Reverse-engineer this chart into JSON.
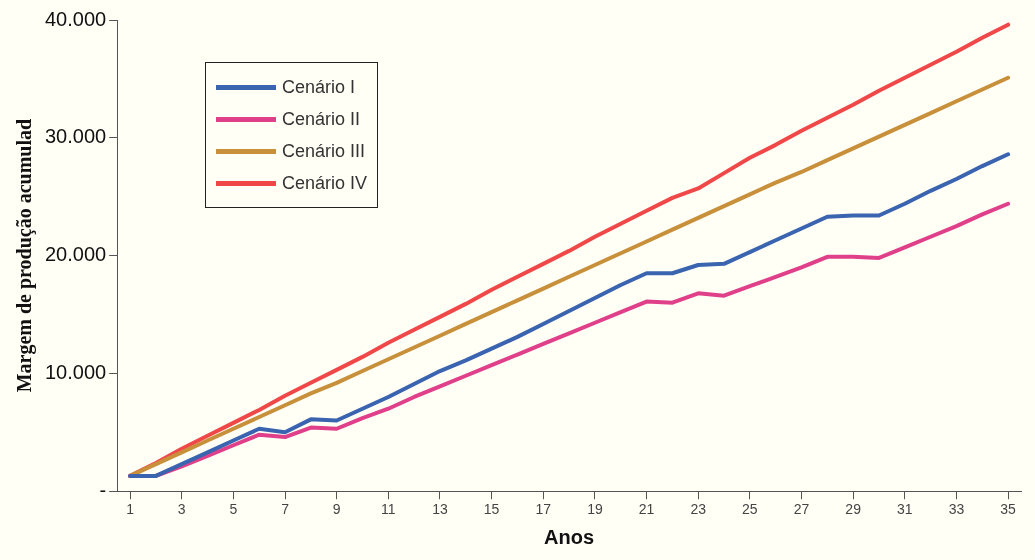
{
  "chart_data": {
    "type": "line",
    "xlabel": "Anos",
    "ylabel": "Margem de produção acumulad",
    "x": [
      1,
      2,
      3,
      4,
      5,
      6,
      7,
      8,
      9,
      10,
      11,
      12,
      13,
      14,
      15,
      16,
      17,
      18,
      19,
      20,
      21,
      22,
      23,
      24,
      25,
      26,
      27,
      28,
      29,
      30,
      31,
      32,
      33,
      34,
      35
    ],
    "xlim": [
      0.5,
      35.5
    ],
    "xticks": [
      1,
      3,
      5,
      7,
      9,
      11,
      13,
      15,
      17,
      19,
      21,
      23,
      25,
      27,
      29,
      31,
      33,
      35
    ],
    "ylim": [
      0,
      40000
    ],
    "yticks": [
      {
        "value": 0,
        "label": "-"
      },
      {
        "value": 10000,
        "label": "10.000"
      },
      {
        "value": 20000,
        "label": "20.000"
      },
      {
        "value": 30000,
        "label": "30.000"
      },
      {
        "value": 40000,
        "label": "40.000"
      }
    ],
    "grid": false,
    "legend": "top left",
    "marker": "none",
    "line_style": "solid",
    "series": [
      {
        "name": "Cenário I",
        "color": "#3a64b0",
        "values": [
          1300,
          1300,
          2300,
          3300,
          4300,
          5300,
          5000,
          6100,
          6000,
          7000,
          8000,
          9100,
          10200,
          11100,
          12100,
          13100,
          14200,
          15300,
          16400,
          17500,
          18500,
          18500,
          19200,
          19300,
          20300,
          21300,
          22300,
          23300,
          23400,
          23400,
          24400,
          25500,
          26500,
          27600,
          28600
        ]
      },
      {
        "name": "Cenário II",
        "color": "#e0408a",
        "values": [
          1300,
          1300,
          2100,
          3000,
          3900,
          4800,
          4600,
          5400,
          5300,
          6200,
          7000,
          8000,
          8900,
          9800,
          10700,
          11600,
          12500,
          13400,
          14300,
          15200,
          16100,
          16000,
          16800,
          16600,
          17400,
          18200,
          19000,
          19900,
          19900,
          19800,
          20700,
          21600,
          22500,
          23500,
          24400
        ]
      },
      {
        "name": "Cenário III",
        "color": "#c8903a",
        "values": [
          1300,
          2300,
          3300,
          4300,
          5300,
          6300,
          7300,
          8300,
          9200,
          10200,
          11200,
          12200,
          13200,
          14200,
          15200,
          16200,
          17200,
          18200,
          19200,
          20200,
          21200,
          22200,
          23200,
          24200,
          25200,
          26200,
          27100,
          28100,
          29100,
          30100,
          31100,
          32100,
          33100,
          34100,
          35100
        ]
      },
      {
        "name": "Cenário IV",
        "color": "#f04848",
        "values": [
          1300,
          2400,
          3600,
          4700,
          5800,
          6900,
          8100,
          9200,
          10300,
          11400,
          12600,
          13700,
          14800,
          15900,
          17100,
          18200,
          19300,
          20400,
          21600,
          22700,
          23800,
          24900,
          25700,
          27000,
          28300,
          29400,
          30600,
          31700,
          32800,
          34000,
          35100,
          36200,
          37300,
          38500,
          39600
        ]
      }
    ]
  }
}
